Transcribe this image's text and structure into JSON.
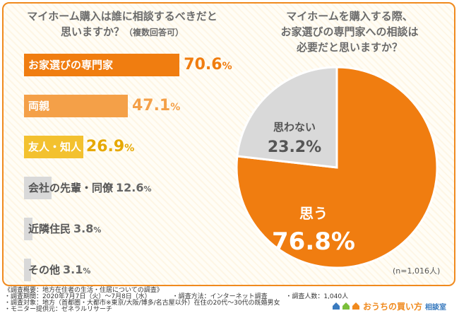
{
  "left_title_line1": "マイホーム購入は誰に相談するべきだと",
  "left_title_line2": "思いますか？",
  "left_title_note": "（複数回答可）",
  "right_title_line1": "マイホームを購入する際、",
  "right_title_line2": "お家選びの専門家への相談は",
  "right_title_line3": "必要だと思いますか？",
  "sample_size": "(n=1,016人)",
  "colors": {
    "orange_dark": "#f07d10",
    "orange_mid": "#f4a048",
    "yellow": "#f3c12f",
    "gray": "#d9d9d9",
    "border": "#f08a1e"
  },
  "chart_data": [
    {
      "type": "bar",
      "orientation": "horizontal",
      "categories": [
        "お家選びの専門家",
        "両親",
        "友人・知人",
        "会社の先輩・同僚",
        "近隣住民",
        "その他"
      ],
      "values": [
        70.6,
        47.1,
        26.9,
        12.6,
        3.8,
        3.1
      ],
      "value_labels": [
        "70.6%",
        "47.1%",
        "26.9%",
        "12.6%",
        "3.8%",
        "3.1%"
      ],
      "bar_colors": [
        "#f07d10",
        "#f4a048",
        "#f3c12f",
        "#d9d9d9",
        "#d9d9d9",
        "#d9d9d9"
      ],
      "xlim": [
        0,
        100
      ]
    },
    {
      "type": "pie",
      "labels": [
        "思う",
        "思わない"
      ],
      "values": [
        76.8,
        23.2
      ],
      "value_labels": [
        "76.8%",
        "23.2%"
      ],
      "colors": [
        "#f07d10",
        "#d9d9d9"
      ]
    }
  ],
  "footer": {
    "line1": "《調査概要：地方在住者の生活・住居についての調査》",
    "line2a": "・調査期間：2020年7月7日（火）〜7月8日（水）",
    "line2b": "・調査方法：インターネット調査",
    "line2c": "・調査人数：1,040人",
    "line3": "・調査対象：地方（首都圏・大都市※東京/大阪/博多/名古屋以外）在住の20代〜30代の既婚男女",
    "line4": "・モニター提供元：ゼネラルリサーチ"
  },
  "brand": {
    "name": "おうちの買い方",
    "sub": "相談室"
  }
}
